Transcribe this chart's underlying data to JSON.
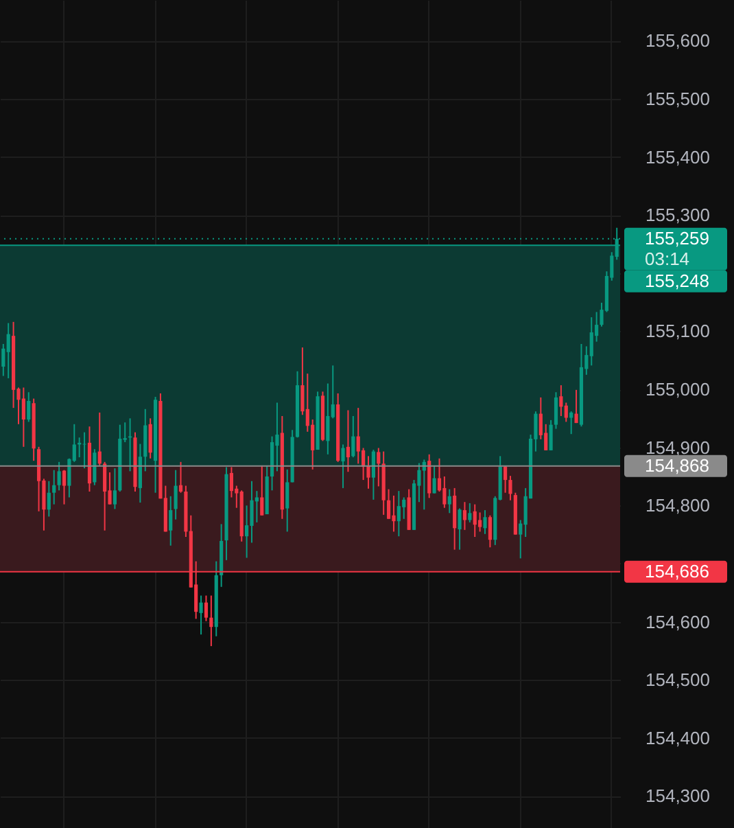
{
  "chart_data": {
    "type": "candlestick",
    "categories": [
      null,
      null,
      null,
      null,
      null,
      null,
      null,
      null,
      null,
      null,
      null,
      null,
      null,
      null,
      null,
      null,
      null,
      null,
      null,
      null,
      null,
      null,
      null,
      null,
      null,
      null,
      null,
      null,
      null,
      null,
      null,
      null,
      null,
      null,
      null,
      null,
      null,
      null,
      null,
      null,
      null,
      null,
      null,
      null,
      null,
      null,
      null,
      null,
      null,
      null,
      null,
      null,
      null,
      null,
      null,
      null,
      null,
      null,
      null,
      null,
      null,
      null,
      null,
      null,
      null,
      null,
      null,
      null,
      null,
      null,
      null,
      null,
      null,
      null,
      null,
      null,
      null,
      null,
      null,
      null,
      null,
      null,
      null,
      null,
      null,
      null,
      null,
      null,
      null,
      null,
      null,
      null,
      null,
      null,
      null,
      null,
      null,
      null,
      null,
      null,
      null,
      null,
      null,
      null,
      null,
      null,
      null,
      null,
      null,
      null,
      null,
      null,
      null,
      null,
      null,
      null,
      null,
      null,
      null,
      null,
      null,
      null
    ],
    "ohlc": [
      [
        155039,
        155078,
        155023,
        155070
      ],
      [
        155064,
        155114,
        155019,
        155095
      ],
      [
        155092,
        155116,
        154968,
        154999
      ],
      [
        155001,
        155003,
        154940,
        154982
      ],
      [
        154984,
        155003,
        154901,
        154948
      ],
      [
        154948,
        154995,
        154944,
        154980
      ],
      [
        154976,
        154984,
        154877,
        154898
      ],
      [
        154897,
        154901,
        154790,
        154842
      ],
      [
        154843,
        154846,
        154757,
        154793
      ],
      [
        154793,
        154842,
        154781,
        154822
      ],
      [
        154822,
        154861,
        154802,
        154835
      ],
      [
        154835,
        154875,
        154826,
        154859
      ],
      [
        154860,
        154861,
        154802,
        154834
      ],
      [
        154834,
        154881,
        154814,
        154880
      ],
      [
        154877,
        154940,
        154875,
        154905
      ],
      [
        154905,
        154917,
        154883,
        154908
      ],
      [
        154905,
        154926,
        154864,
        154906
      ],
      [
        154908,
        154936,
        154824,
        154838
      ],
      [
        154840,
        154897,
        154835,
        154891
      ],
      [
        154893,
        154960,
        154869,
        154872
      ],
      [
        154872,
        154875,
        154757,
        154824
      ],
      [
        154826,
        154857,
        154802,
        154802
      ],
      [
        154802,
        154864,
        154794,
        154826
      ],
      [
        154826,
        154939,
        154824,
        154915
      ],
      [
        154913,
        154943,
        154909,
        154916
      ],
      [
        154917,
        154950,
        154859,
        154919
      ],
      [
        154917,
        154926,
        154824,
        154832
      ],
      [
        154830,
        154906,
        154805,
        154884
      ],
      [
        154884,
        154966,
        154859,
        154938
      ],
      [
        154940,
        154950,
        154881,
        154891
      ],
      [
        154877,
        154987,
        154822,
        154982
      ],
      [
        154980,
        154993,
        154812,
        154812
      ],
      [
        154813,
        154834,
        154755,
        154755
      ],
      [
        154757,
        154816,
        154731,
        154792
      ],
      [
        154794,
        154861,
        154776,
        154834
      ],
      [
        154835,
        154875,
        154822,
        154824
      ],
      [
        154824,
        154834,
        154746,
        154755
      ],
      [
        154756,
        154783,
        154659,
        154659
      ],
      [
        154664,
        154704,
        154605,
        154617
      ],
      [
        154615,
        154645,
        154578,
        154633
      ],
      [
        154633,
        154645,
        154601,
        154607
      ],
      [
        154607,
        154645,
        154558,
        154591
      ],
      [
        154591,
        154704,
        154575,
        154680
      ],
      [
        154680,
        154768,
        154660,
        154739
      ],
      [
        154740,
        154866,
        154706,
        154854
      ],
      [
        154856,
        154866,
        154814,
        154825
      ],
      [
        154829,
        154834,
        154796,
        154821
      ],
      [
        154824,
        154826,
        154738,
        154747
      ],
      [
        154747,
        154800,
        154710,
        154766
      ],
      [
        154765,
        154842,
        154736,
        154809
      ],
      [
        154807,
        154825,
        154771,
        154814
      ],
      [
        154814,
        154869,
        154783,
        154783
      ],
      [
        154785,
        154869,
        154785,
        154850
      ],
      [
        154850,
        154919,
        154826,
        154909
      ],
      [
        154903,
        154977,
        154859,
        154922
      ],
      [
        154925,
        154954,
        154777,
        154793
      ],
      [
        154795,
        154862,
        154755,
        154840
      ],
      [
        154840,
        154930,
        154840,
        154918
      ],
      [
        154918,
        155031,
        154917,
        155007
      ],
      [
        155007,
        155072,
        154956,
        154962
      ],
      [
        154966,
        155027,
        154927,
        154937
      ],
      [
        154939,
        154948,
        154862,
        154895
      ],
      [
        154896,
        154996,
        154896,
        154988
      ],
      [
        154989,
        154996,
        154911,
        154913
      ],
      [
        154911,
        155010,
        154888,
        154954
      ],
      [
        154952,
        155041,
        154950,
        154974
      ],
      [
        154974,
        154993,
        154875,
        154877
      ],
      [
        154876,
        154905,
        154830,
        154899
      ],
      [
        154901,
        154964,
        154858,
        154883
      ],
      [
        154885,
        154954,
        154883,
        154919
      ],
      [
        154919,
        154968,
        154872,
        154893
      ],
      [
        154895,
        154899,
        154844,
        154867
      ],
      [
        154869,
        154885,
        154829,
        154848
      ],
      [
        154848,
        154896,
        154810,
        154893
      ],
      [
        154892,
        154899,
        154833,
        154872
      ],
      [
        154872,
        154893,
        154784,
        154809
      ],
      [
        154809,
        154828,
        154777,
        154777
      ],
      [
        154783,
        154817,
        154755,
        154773
      ],
      [
        154773,
        154825,
        154747,
        154799
      ],
      [
        154797,
        154814,
        154777,
        154810
      ],
      [
        154814,
        154828,
        154758,
        154758
      ],
      [
        154758,
        154844,
        154758,
        154838
      ],
      [
        154834,
        154873,
        154806,
        154861
      ],
      [
        154860,
        154879,
        154793,
        154875
      ],
      [
        154877,
        154888,
        154813,
        154821
      ],
      [
        154821,
        154869,
        154821,
        154847
      ],
      [
        154847,
        154881,
        154824,
        154826
      ],
      [
        154830,
        154850,
        154796,
        154802
      ],
      [
        154802,
        154828,
        154787,
        154816
      ],
      [
        154817,
        154830,
        154724,
        154761
      ],
      [
        154759,
        154795,
        154724,
        154793
      ],
      [
        154792,
        154806,
        154758,
        154775
      ],
      [
        154775,
        154804,
        154771,
        154787
      ],
      [
        154790,
        154802,
        154746,
        154767
      ],
      [
        154775,
        154788,
        154755,
        154763
      ],
      [
        154761,
        154792,
        154751,
        154780
      ],
      [
        154780,
        154783,
        154728,
        154741
      ],
      [
        154741,
        154816,
        154732,
        154813
      ],
      [
        154810,
        154885,
        154809,
        154867
      ],
      [
        154867,
        154868,
        154822,
        154844
      ],
      [
        154844,
        154851,
        154809,
        154820
      ],
      [
        154818,
        154822,
        154750,
        154750
      ],
      [
        154750,
        154775,
        154709,
        154769
      ],
      [
        154767,
        154830,
        154746,
        154816
      ],
      [
        154812,
        154922,
        154812,
        154915
      ],
      [
        154914,
        154962,
        154893,
        154958
      ],
      [
        154958,
        154986,
        154914,
        154921
      ],
      [
        154925,
        154940,
        154895,
        154895
      ],
      [
        154895,
        154947,
        154895,
        154939
      ],
      [
        154939,
        154995,
        154932,
        154986
      ],
      [
        154988,
        155007,
        154954,
        154970
      ],
      [
        154972,
        154977,
        154944,
        154951
      ],
      [
        154951,
        154962,
        154923,
        154960
      ],
      [
        154958,
        154999,
        154942,
        154942
      ],
      [
        154939,
        155078,
        154936,
        155038
      ],
      [
        155035,
        155074,
        155025,
        155059
      ],
      [
        155057,
        155124,
        155041,
        155098
      ],
      [
        155092,
        155133,
        155082,
        155111
      ],
      [
        155111,
        155149,
        155108,
        155137
      ],
      [
        155135,
        155203,
        155133,
        155195
      ],
      [
        155192,
        155236,
        155187,
        155230
      ],
      [
        155228,
        155278,
        155223,
        155259
      ]
    ],
    "colors": [
      "#089981",
      "#089981",
      "#f23645",
      "#f23645",
      "#f23645",
      "#089981",
      "#f23645",
      "#f23645",
      "#f23645",
      "#089981",
      "#089981",
      "#089981",
      "#f23645",
      "#089981",
      "#089981",
      "#089981",
      "#089981",
      "#f23645",
      "#089981",
      "#f23645",
      "#f23645",
      "#f23645",
      "#089981",
      "#089981",
      "#089981",
      "#089981",
      "#f23645",
      "#089981",
      "#089981",
      "#f23645",
      "#089981",
      "#f23645",
      "#f23645",
      "#089981",
      "#089981",
      "#f23645",
      "#f23645",
      "#f23645",
      "#f23645",
      "#089981",
      "#f23645",
      "#f23645",
      "#089981",
      "#089981",
      "#089981",
      "#f23645",
      "#f23645",
      "#f23645",
      "#089981",
      "#089981",
      "#089981",
      "#f23645",
      "#089981",
      "#089981",
      "#089981",
      "#f23645",
      "#089981",
      "#089981",
      "#089981",
      "#f23645",
      "#f23645",
      "#f23645",
      "#089981",
      "#f23645",
      "#089981",
      "#089981",
      "#f23645",
      "#089981",
      "#f23645",
      "#089981",
      "#f23645",
      "#f23645",
      "#f23645",
      "#089981",
      "#f23645",
      "#f23645",
      "#f23645",
      "#f23645",
      "#089981",
      "#089981",
      "#f23645",
      "#089981",
      "#089981",
      "#089981",
      "#f23645",
      "#089981",
      "#f23645",
      "#f23645",
      "#089981",
      "#f23645",
      "#089981",
      "#f23645",
      "#089981",
      "#f23645",
      "#f23645",
      "#089981",
      "#f23645",
      "#089981",
      "#089981",
      "#f23645",
      "#f23645",
      "#f23645",
      "#089981",
      "#089981",
      "#089981",
      "#089981",
      "#f23645",
      "#f23645",
      "#089981",
      "#089981",
      "#f23645",
      "#f23645",
      "#089981",
      "#f23645",
      "#089981",
      "#089981",
      "#089981",
      "#089981",
      "#089981",
      "#089981",
      "#089981",
      "#089981"
    ],
    "ylim": [
      154245,
      155670
    ],
    "yticks": [
      {
        "value": 154300,
        "label": "154,300"
      },
      {
        "value": 154400,
        "label": "154,400"
      },
      {
        "value": 154500,
        "label": "154,500"
      },
      {
        "value": 154600,
        "label": "154,600"
      },
      {
        "value": 154700,
        "label": null
      },
      {
        "value": 154800,
        "label": "154,800"
      },
      {
        "value": 154900,
        "label": "154,900"
      },
      {
        "value": 155000,
        "label": "155,000"
      },
      {
        "value": 155100,
        "label": "155,100"
      },
      {
        "value": 155200,
        "label": null
      },
      {
        "value": 155300,
        "label": "155,300"
      },
      {
        "value": 155400,
        "label": "155,400"
      },
      {
        "value": 155500,
        "label": "155,500"
      },
      {
        "value": 155600,
        "label": "155,600"
      }
    ],
    "bands": [
      {
        "axis": "y",
        "from": 154868,
        "to": 155248,
        "color": "#0c3a33"
      },
      {
        "axis": "y",
        "from": 154686,
        "to": 154868,
        "color": "#3a1a1e"
      }
    ],
    "ref_lines": [
      {
        "axis": "y",
        "value": 155259,
        "label": "155,259",
        "color": "#089981",
        "line_style": "dotted"
      },
      {
        "axis": "y",
        "value": 155248,
        "label": "155,248",
        "color": "#089981",
        "line_style": "solid"
      },
      {
        "axis": "y",
        "value": 154868,
        "label": "154,868",
        "color": "#8a8a8a",
        "line_style": "solid"
      },
      {
        "axis": "y",
        "value": 154686,
        "label": "154,686",
        "color": "#f23645",
        "line_style": "solid"
      }
    ],
    "annotations": [
      "03:14"
    ],
    "grid": true,
    "tick_labels": "y"
  }
}
